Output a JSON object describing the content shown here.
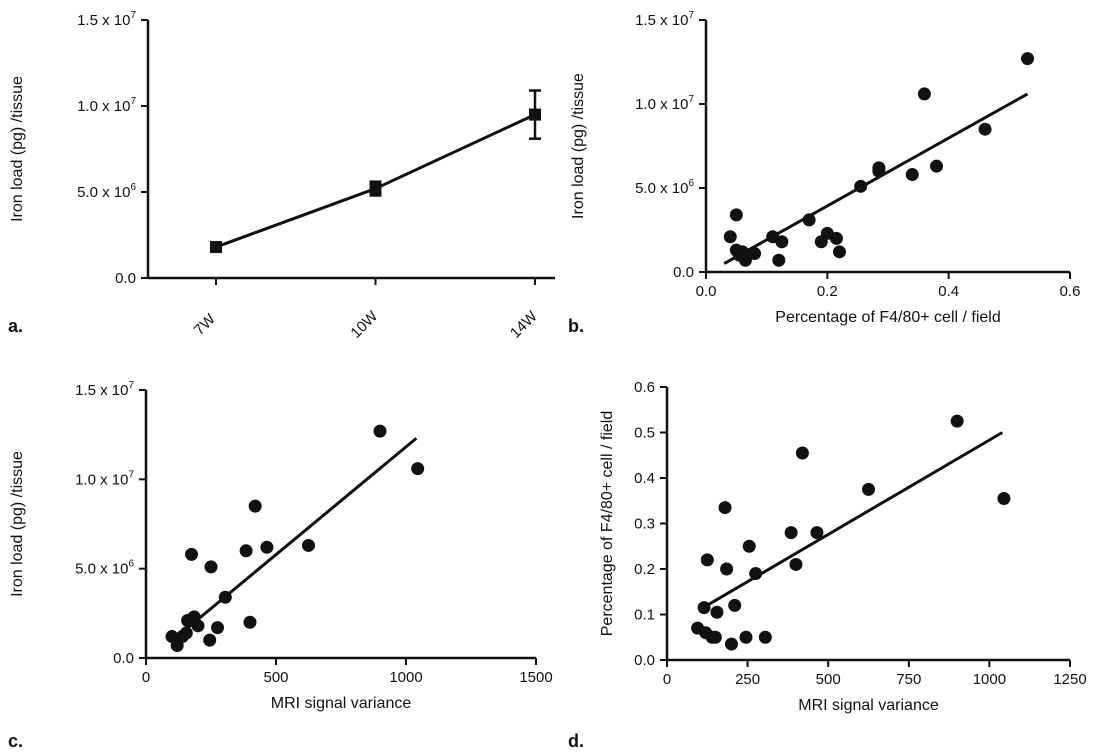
{
  "chart_data": [
    {
      "panel_label": "a.",
      "type": "line",
      "ylabel": "Iron load (pg) /tissue",
      "xlabel": "",
      "categories": [
        "7W",
        "10W",
        "14W"
      ],
      "values": [
        1800000,
        5200000,
        9500000
      ],
      "error": [
        200000,
        400000,
        1400000
      ],
      "ylim": [
        0,
        15000000
      ],
      "y_ticks": [
        "0.0",
        "5.0 x 10^6",
        "1.0 x 10^7",
        "1.5 x 10^7"
      ],
      "marker": "square"
    },
    {
      "panel_label": "b.",
      "type": "scatter",
      "xlabel": "Percentage of F4/80+ cell / field",
      "ylabel": "Iron load (pg) /tissue",
      "xlim": [
        0,
        0.6
      ],
      "ylim": [
        0,
        15000000
      ],
      "x_ticks": [
        "0.0",
        "0.2",
        "0.4",
        "0.6"
      ],
      "y_ticks": [
        "0.0",
        "5.0 x 10^6",
        "1.0 x 10^7",
        "1.5 x 10^7"
      ],
      "points": [
        [
          0.04,
          2100000
        ],
        [
          0.05,
          3400000
        ],
        [
          0.05,
          1300000
        ],
        [
          0.055,
          1000000
        ],
        [
          0.06,
          1200000
        ],
        [
          0.065,
          700000
        ],
        [
          0.08,
          1100000
        ],
        [
          0.11,
          2100000
        ],
        [
          0.12,
          700000
        ],
        [
          0.125,
          1800000
        ],
        [
          0.17,
          3100000
        ],
        [
          0.19,
          1800000
        ],
        [
          0.2,
          2300000
        ],
        [
          0.215,
          2000000
        ],
        [
          0.22,
          1200000
        ],
        [
          0.255,
          5100000
        ],
        [
          0.285,
          6200000
        ],
        [
          0.285,
          6000000
        ],
        [
          0.34,
          5800000
        ],
        [
          0.36,
          10600000
        ],
        [
          0.38,
          6300000
        ],
        [
          0.46,
          8500000
        ],
        [
          0.53,
          12700000
        ]
      ],
      "fit": [
        [
          0.03,
          500000
        ],
        [
          0.53,
          10600000
        ]
      ]
    },
    {
      "panel_label": "c.",
      "type": "scatter",
      "xlabel": "MRI signal variance",
      "ylabel": "Iron load (pg) /tissue",
      "xlim": [
        0,
        1500
      ],
      "ylim": [
        0,
        15000000
      ],
      "x_ticks": [
        "0",
        "500",
        "1000",
        "1500"
      ],
      "y_ticks": [
        "0.0",
        "5.0 x 10^6",
        "1.0 x 10^7",
        "1.5 x 10^7"
      ],
      "points": [
        [
          100,
          1200000
        ],
        [
          120,
          700000
        ],
        [
          140,
          1200000
        ],
        [
          155,
          1400000
        ],
        [
          160,
          2100000
        ],
        [
          175,
          5800000
        ],
        [
          185,
          2300000
        ],
        [
          200,
          1800000
        ],
        [
          245,
          1000000
        ],
        [
          250,
          5100000
        ],
        [
          275,
          1700000
        ],
        [
          305,
          3400000
        ],
        [
          385,
          6000000
        ],
        [
          400,
          2000000
        ],
        [
          420,
          8500000
        ],
        [
          465,
          6200000
        ],
        [
          625,
          6300000
        ],
        [
          900,
          12700000
        ],
        [
          1045,
          10600000
        ]
      ],
      "fit": [
        [
          120,
          1200000
        ],
        [
          1040,
          12300000
        ]
      ]
    },
    {
      "panel_label": "d.",
      "type": "scatter",
      "xlabel": "MRI signal variance",
      "ylabel": "Percentage of F4/80+ cell / field",
      "xlim": [
        0,
        1250
      ],
      "ylim": [
        0,
        0.6
      ],
      "x_ticks": [
        "0",
        "250",
        "500",
        "750",
        "1000",
        "1250"
      ],
      "y_ticks": [
        "0.0",
        "0.1",
        "0.2",
        "0.3",
        "0.4",
        "0.5",
        "0.6"
      ],
      "points": [
        [
          95,
          0.07
        ],
        [
          115,
          0.115
        ],
        [
          120,
          0.06
        ],
        [
          125,
          0.22
        ],
        [
          140,
          0.05
        ],
        [
          150,
          0.05
        ],
        [
          155,
          0.105
        ],
        [
          180,
          0.335
        ],
        [
          185,
          0.2
        ],
        [
          200,
          0.035
        ],
        [
          210,
          0.12
        ],
        [
          245,
          0.05
        ],
        [
          255,
          0.25
        ],
        [
          275,
          0.19
        ],
        [
          305,
          0.05
        ],
        [
          385,
          0.28
        ],
        [
          400,
          0.21
        ],
        [
          420,
          0.455
        ],
        [
          465,
          0.28
        ],
        [
          625,
          0.375
        ],
        [
          900,
          0.525
        ],
        [
          1045,
          0.355
        ]
      ],
      "fit": [
        [
          100,
          0.11
        ],
        [
          1040,
          0.5
        ]
      ]
    }
  ]
}
